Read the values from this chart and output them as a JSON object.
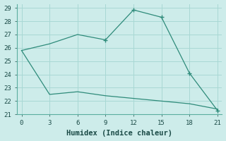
{
  "line1_x": [
    0,
    3,
    6,
    9,
    12,
    15,
    18,
    21
  ],
  "line1_y": [
    25.8,
    26.3,
    27.0,
    26.6,
    28.85,
    28.3,
    24.1,
    21.3
  ],
  "line2_x": [
    0,
    3,
    6,
    9,
    12,
    15,
    18,
    21
  ],
  "line2_y": [
    25.8,
    22.5,
    22.7,
    22.4,
    22.2,
    22.0,
    21.8,
    21.4
  ],
  "line_color": "#2e8b7a",
  "bg_color": "#cdecea",
  "grid_color": "#a8d8d4",
  "xlabel": "Humidex (Indice chaleur)",
  "xlim": [
    -0.5,
    21.5
  ],
  "ylim": [
    21,
    29.3
  ],
  "xticks": [
    0,
    3,
    6,
    9,
    12,
    15,
    18,
    21
  ],
  "yticks": [
    21,
    22,
    23,
    24,
    25,
    26,
    27,
    28,
    29
  ],
  "xlabel_fontsize": 7.5,
  "tick_fontsize": 6.5
}
